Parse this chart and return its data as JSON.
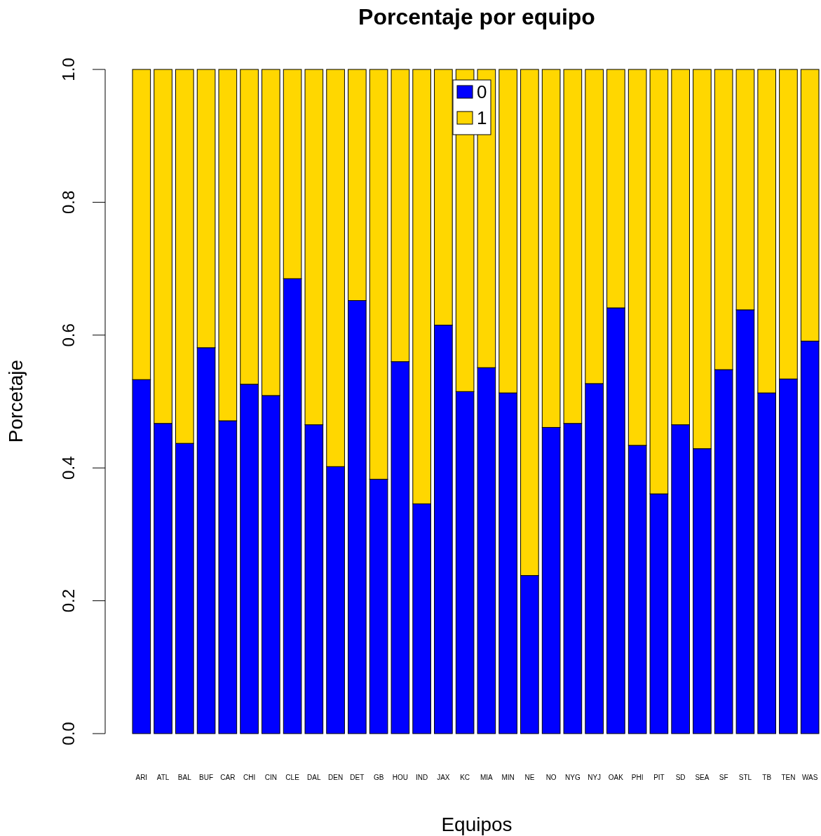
{
  "chart_data": {
    "type": "bar",
    "title": "Porcentaje por equipo",
    "xlabel": "Equipos",
    "ylabel": "Porcetaje",
    "stacked": true,
    "legend": "top",
    "grid": false,
    "categories": [
      "ARI",
      "ATL",
      "BAL",
      "BUF",
      "CAR",
      "CHI",
      "CIN",
      "CLE",
      "DAL",
      "DEN",
      "DET",
      "GB",
      "HOU",
      "IND",
      "JAX",
      "KC",
      "MIA",
      "MIN",
      "NE",
      "NO",
      "NYG",
      "NYJ",
      "OAK",
      "PHI",
      "PIT",
      "SD",
      "SEA",
      "SF",
      "STL",
      "TB",
      "TEN",
      "WAS"
    ],
    "series": [
      {
        "name": "0",
        "color": "#0000ff",
        "values": [
          0.533,
          0.467,
          0.437,
          0.581,
          0.471,
          0.526,
          0.509,
          0.685,
          0.465,
          0.402,
          0.652,
          0.383,
          0.56,
          0.346,
          0.615,
          0.515,
          0.551,
          0.513,
          0.238,
          0.461,
          0.467,
          0.527,
          0.641,
          0.434,
          0.361,
          0.465,
          0.429,
          0.548,
          0.638,
          0.513,
          0.534,
          0.591
        ]
      },
      {
        "name": "1",
        "color": "#ffd700",
        "values": [
          0.467,
          0.533,
          0.563,
          0.419,
          0.529,
          0.474,
          0.491,
          0.315,
          0.535,
          0.598,
          0.348,
          0.617,
          0.44,
          0.654,
          0.385,
          0.485,
          0.449,
          0.487,
          0.762,
          0.539,
          0.533,
          0.473,
          0.359,
          0.566,
          0.639,
          0.535,
          0.571,
          0.452,
          0.362,
          0.487,
          0.466,
          0.409
        ]
      }
    ],
    "ylim": [
      0,
      1
    ],
    "yticks": [
      {
        "value": 0,
        "label": "0.0"
      },
      {
        "value": 0.2,
        "label": "0.2"
      },
      {
        "value": 0.4,
        "label": "0.4"
      },
      {
        "value": 0.6,
        "label": "0.6"
      },
      {
        "value": 0.8,
        "label": "0.8"
      },
      {
        "value": 1,
        "label": "1.0"
      }
    ]
  }
}
